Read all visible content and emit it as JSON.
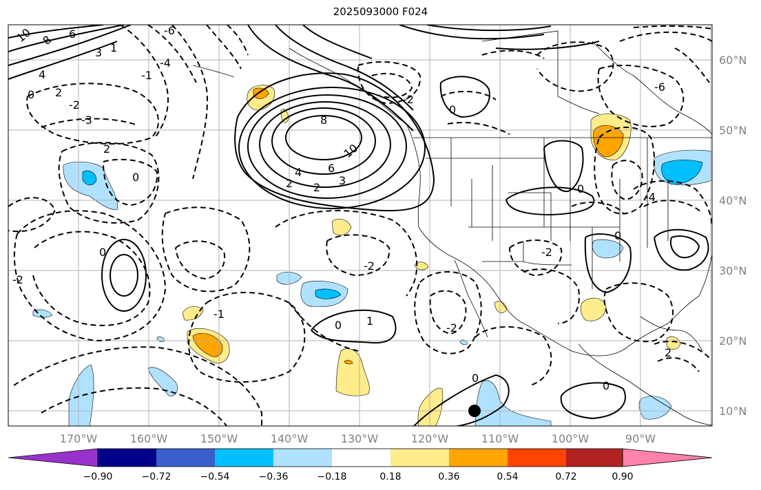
{
  "title": "2025093000 F024",
  "map": {
    "lon_labels": [
      "170°W",
      "160°W",
      "150°W",
      "140°W",
      "130°W",
      "120°W",
      "110°W",
      "100°W",
      "90°W"
    ],
    "lat_labels": [
      "60°N",
      "50°N",
      "40°N",
      "30°N",
      "20°N",
      "10°N"
    ],
    "marker": {
      "lon": "-113.5",
      "lat": "10.2"
    }
  },
  "colorbar": {
    "colors": [
      "#9932cc",
      "#00008b",
      "#3a5fcd",
      "#00bfff",
      "#b0e2ff",
      "#ffffff",
      "#ffec8b",
      "#ffa500",
      "#ff4500",
      "#b22222",
      "#ff82ab"
    ],
    "ticks": [
      "−0.90",
      "−0.72",
      "−0.54",
      "−0.36",
      "−0.18",
      "0.18",
      "0.36",
      "0.54",
      "0.72",
      "0.90"
    ]
  },
  "contour_labels": [
    "10",
    "8",
    "6",
    "4",
    "2",
    "0",
    "-2",
    "3",
    "-3",
    "1",
    "-1",
    "-4",
    "-6",
    "2",
    "0",
    "8",
    "10",
    "6",
    "4",
    "2",
    "3",
    "2",
    "-2",
    "0",
    "-2",
    "0",
    "-2",
    "1",
    "-1",
    "0",
    "-2",
    "0",
    "-6",
    "-4",
    "2",
    "-2",
    "0",
    "0",
    "0"
  ]
}
